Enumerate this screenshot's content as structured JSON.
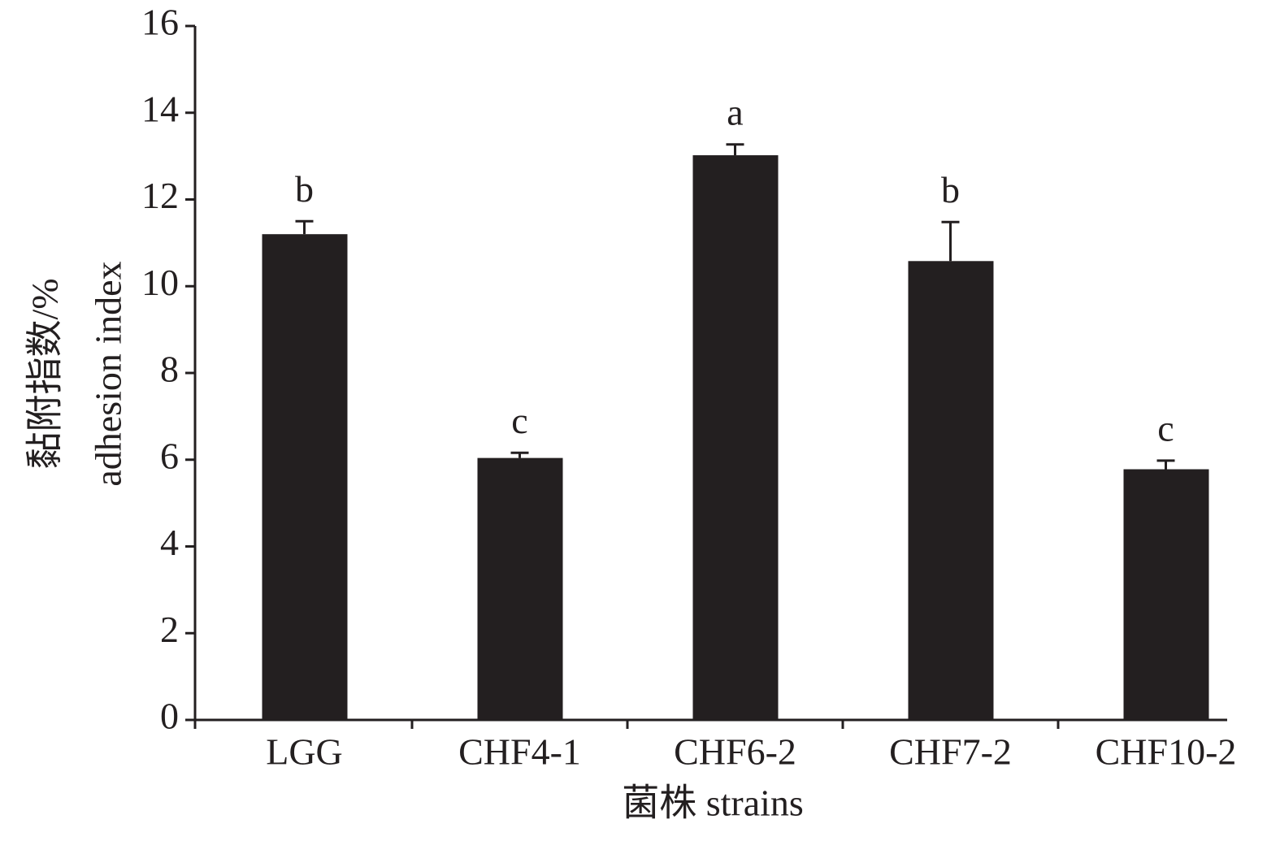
{
  "chart_data": {
    "type": "bar",
    "y_label_lines": [
      "黏附指数/%",
      "adhesion index"
    ],
    "x_label": "菌株 strains",
    "categories": [
      "LGG",
      "CHF4-1",
      "CHF6-2",
      "CHF7-2",
      "CHF10-2"
    ],
    "values": [
      11.2,
      6.04,
      13.02,
      10.58,
      5.78
    ],
    "errors": [
      0.3,
      0.12,
      0.25,
      0.9,
      0.2
    ],
    "letters": [
      "b",
      "c",
      "a",
      "b",
      "c"
    ],
    "color": "#231f20",
    "ylim": [
      0,
      16
    ],
    "yticks": [
      0,
      2,
      4,
      6,
      8,
      10,
      12,
      14,
      16
    ],
    "grid": false
  }
}
